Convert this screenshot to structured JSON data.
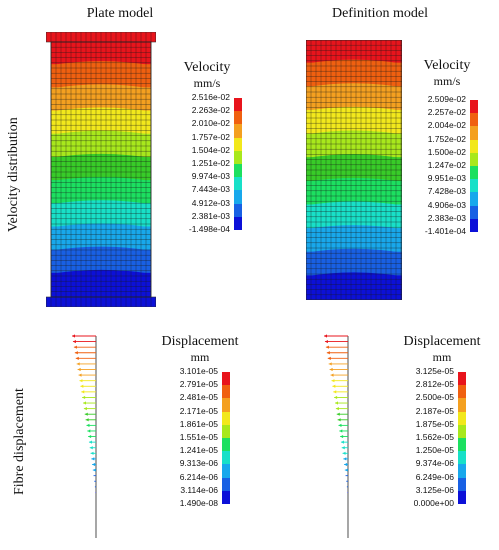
{
  "columns": {
    "plate": "Plate model",
    "definition": "Definition model"
  },
  "rows": {
    "velocity": "Velocity distribution",
    "fibre": "Fibre displacement"
  },
  "legends": {
    "plate_velocity": {
      "title": "Velocity",
      "unit": "mm/s",
      "values": [
        "2.516e-02",
        "2.263e-02",
        "2.010e-02",
        "1.757e-02",
        "1.504e-02",
        "1.251e-02",
        "9.974e-03",
        "7.443e-03",
        "4.912e-03",
        "2.381e-03",
        "-1.498e-04"
      ]
    },
    "def_velocity": {
      "title": "Velocity",
      "unit": "mm/s",
      "values": [
        "2.509e-02",
        "2.257e-02",
        "2.004e-02",
        "1.752e-02",
        "1.500e-02",
        "1.247e-02",
        "9.951e-03",
        "7.428e-03",
        "4.906e-03",
        "2.383e-03",
        "-1.401e-04"
      ]
    },
    "plate_disp": {
      "title": "Displacement",
      "unit": "mm",
      "values": [
        "3.101e-05",
        "2.791e-05",
        "2.481e-05",
        "2.171e-05",
        "1.861e-05",
        "1.551e-05",
        "1.241e-05",
        "9.313e-06",
        "6.214e-06",
        "3.114e-06",
        "1.490e-08"
      ]
    },
    "def_disp": {
      "title": "Displacement",
      "unit": "mm",
      "values": [
        "3.125e-05",
        "2.812e-05",
        "2.500e-05",
        "2.187e-05",
        "1.875e-05",
        "1.562e-05",
        "1.250e-05",
        "9.374e-06",
        "6.249e-06",
        "3.125e-06",
        "0.000e+00"
      ]
    }
  },
  "colors": [
    "#e8141c",
    "#f06010",
    "#f4a020",
    "#f2e81c",
    "#a8e81c",
    "#38cc28",
    "#1ce060",
    "#18e0c8",
    "#18a8ec",
    "#1860e4",
    "#0c10d8"
  ]
}
